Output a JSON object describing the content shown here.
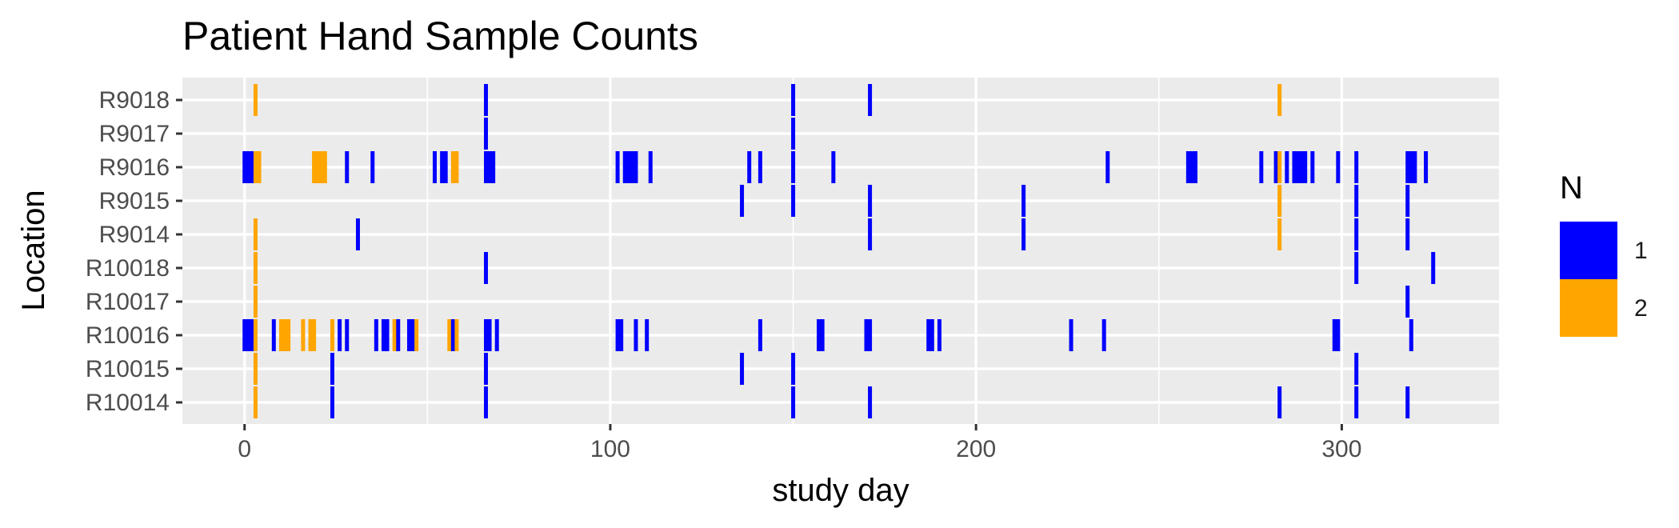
{
  "chart_data": {
    "type": "heatmap",
    "title": "Patient Hand Sample Counts",
    "xlabel": "study day",
    "ylabel": "Location",
    "xlim": [
      -17,
      343
    ],
    "x_ticks": [
      0,
      100,
      200,
      300
    ],
    "x_tick_labels": [
      "0",
      "100",
      "200",
      "300"
    ],
    "categories": [
      "R9018",
      "R9017",
      "R9016",
      "R9015",
      "R9014",
      "R10018",
      "R10017",
      "R10016",
      "R10015",
      "R10014"
    ],
    "legend": {
      "title": "N",
      "position": "right",
      "entries": [
        {
          "label": "1",
          "value": 1,
          "color": "#0000FF"
        },
        {
          "label": "2",
          "value": 2,
          "color": "#FFA500"
        }
      ]
    },
    "colors": {
      "1": "#0000FF",
      "2": "#FFA500",
      "panel": "#EBEBEB",
      "grid": "#FFFFFF"
    },
    "grid": true,
    "rows": [
      {
        "location": "R9018",
        "cells": [
          [
            3,
            2
          ],
          [
            66,
            1
          ],
          [
            150,
            1
          ],
          [
            171,
            1
          ],
          [
            283,
            2
          ]
        ]
      },
      {
        "location": "R9017",
        "cells": [
          [
            66,
            1
          ],
          [
            150,
            1
          ]
        ]
      },
      {
        "location": "R9016",
        "cells": [
          [
            0,
            1
          ],
          [
            1,
            1
          ],
          [
            2,
            1
          ],
          [
            3,
            2
          ],
          [
            4,
            2
          ],
          [
            19,
            2
          ],
          [
            20,
            2
          ],
          [
            21,
            2
          ],
          [
            22,
            2
          ],
          [
            28,
            1
          ],
          [
            35,
            1
          ],
          [
            52,
            1
          ],
          [
            54,
            1
          ],
          [
            55,
            1
          ],
          [
            57,
            2
          ],
          [
            58,
            2
          ],
          [
            66,
            1
          ],
          [
            67,
            1
          ],
          [
            68,
            1
          ],
          [
            102,
            1
          ],
          [
            104,
            1
          ],
          [
            105,
            1
          ],
          [
            106,
            1
          ],
          [
            107,
            1
          ],
          [
            111,
            1
          ],
          [
            138,
            1
          ],
          [
            141,
            1
          ],
          [
            150,
            1
          ],
          [
            161,
            1
          ],
          [
            236,
            1
          ],
          [
            258,
            1
          ],
          [
            259,
            1
          ],
          [
            260,
            1
          ],
          [
            278,
            1
          ],
          [
            282,
            1
          ],
          [
            283,
            2
          ],
          [
            285,
            1
          ],
          [
            287,
            1
          ],
          [
            288,
            1
          ],
          [
            289,
            1
          ],
          [
            290,
            1
          ],
          [
            292,
            1
          ],
          [
            299,
            1
          ],
          [
            304,
            1
          ],
          [
            318,
            1
          ],
          [
            319,
            1
          ],
          [
            320,
            1
          ],
          [
            323,
            1
          ]
        ]
      },
      {
        "location": "R9015",
        "cells": [
          [
            136,
            1
          ],
          [
            150,
            1
          ],
          [
            171,
            1
          ],
          [
            213,
            1
          ],
          [
            283,
            2
          ],
          [
            304,
            1
          ],
          [
            318,
            1
          ]
        ]
      },
      {
        "location": "R9014",
        "cells": [
          [
            3,
            2
          ],
          [
            31,
            1
          ],
          [
            171,
            1
          ],
          [
            213,
            1
          ],
          [
            283,
            2
          ],
          [
            304,
            1
          ],
          [
            318,
            1
          ]
        ]
      },
      {
        "location": "R10018",
        "cells": [
          [
            3,
            2
          ],
          [
            66,
            1
          ],
          [
            304,
            1
          ],
          [
            325,
            1
          ]
        ]
      },
      {
        "location": "R10017",
        "cells": [
          [
            3,
            2
          ],
          [
            318,
            1
          ]
        ]
      },
      {
        "location": "R10016",
        "cells": [
          [
            0,
            1
          ],
          [
            1,
            1
          ],
          [
            2,
            1
          ],
          [
            3,
            2
          ],
          [
            8,
            1
          ],
          [
            10,
            2
          ],
          [
            11,
            2
          ],
          [
            12,
            2
          ],
          [
            16,
            2
          ],
          [
            18,
            2
          ],
          [
            19,
            2
          ],
          [
            24,
            2
          ],
          [
            26,
            1
          ],
          [
            28,
            1
          ],
          [
            36,
            1
          ],
          [
            38,
            1
          ],
          [
            39,
            1
          ],
          [
            41,
            2
          ],
          [
            42,
            1
          ],
          [
            45,
            1
          ],
          [
            46,
            1
          ],
          [
            47,
            2
          ],
          [
            56,
            2
          ],
          [
            57,
            1
          ],
          [
            58,
            2
          ],
          [
            66,
            1
          ],
          [
            67,
            1
          ],
          [
            69,
            1
          ],
          [
            102,
            1
          ],
          [
            103,
            1
          ],
          [
            107,
            1
          ],
          [
            110,
            1
          ],
          [
            141,
            1
          ],
          [
            157,
            1
          ],
          [
            158,
            1
          ],
          [
            170,
            1
          ],
          [
            171,
            1
          ],
          [
            187,
            1
          ],
          [
            188,
            1
          ],
          [
            190,
            1
          ],
          [
            226,
            1
          ],
          [
            235,
            1
          ],
          [
            298,
            1
          ],
          [
            299,
            1
          ],
          [
            319,
            1
          ]
        ]
      },
      {
        "location": "R10015",
        "cells": [
          [
            3,
            2
          ],
          [
            24,
            1
          ],
          [
            66,
            1
          ],
          [
            136,
            1
          ],
          [
            150,
            1
          ],
          [
            304,
            1
          ]
        ]
      },
      {
        "location": "R10014",
        "cells": [
          [
            3,
            2
          ],
          [
            24,
            1
          ],
          [
            66,
            1
          ],
          [
            150,
            1
          ],
          [
            171,
            1
          ],
          [
            283,
            1
          ],
          [
            304,
            1
          ],
          [
            318,
            1
          ]
        ]
      }
    ]
  }
}
